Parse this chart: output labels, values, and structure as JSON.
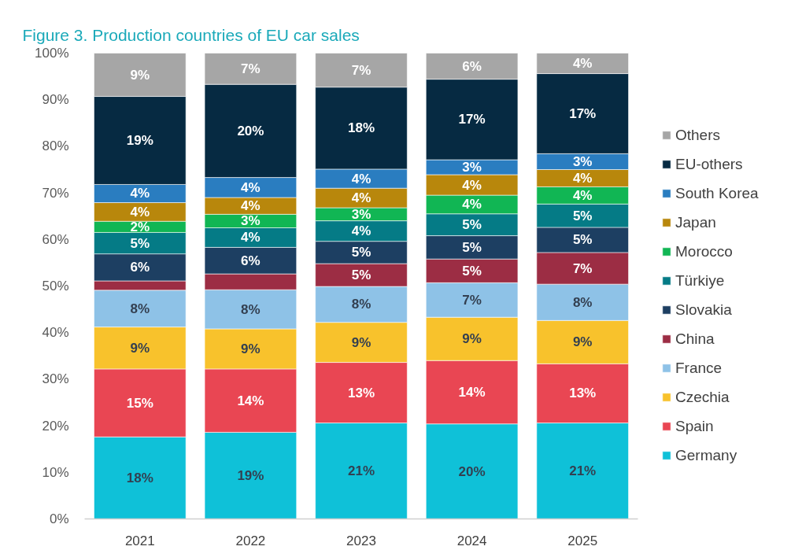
{
  "chart_data": {
    "type": "bar",
    "title": "Figure 3. Production countries of EU car sales",
    "categories": [
      "2021",
      "2022",
      "2023",
      "2024",
      "2025"
    ],
    "stacked": true,
    "ylim": [
      0,
      100
    ],
    "yticks": [
      {
        "value": 0,
        "label": "0%"
      },
      {
        "value": 10,
        "label": "10%"
      },
      {
        "value": 20,
        "label": "20%"
      },
      {
        "value": 30,
        "label": "30%"
      },
      {
        "value": 40,
        "label": "40%"
      },
      {
        "value": 50,
        "label": "50%"
      },
      {
        "value": 60,
        "label": "60%"
      },
      {
        "value": 70,
        "label": "70%"
      },
      {
        "value": 80,
        "label": "80%"
      },
      {
        "value": 90,
        "label": "90%"
      },
      {
        "value": 100,
        "label": "100%"
      }
    ],
    "legend": "right",
    "series": [
      {
        "name": "Germany",
        "color": "#0fc1d8",
        "values": [
          17.6,
          18.6,
          20.6,
          20.4,
          20.6
        ],
        "value_labels": [
          "18%",
          "19%",
          "21%",
          "20%",
          "21%"
        ]
      },
      {
        "name": "Spain",
        "color": "#e94653",
        "values": [
          14.6,
          13.6,
          13.0,
          13.6,
          12.7
        ],
        "value_labels": [
          "15%",
          "14%",
          "13%",
          "14%",
          "13%"
        ]
      },
      {
        "name": "Czechia",
        "color": "#f8c22c",
        "values": [
          9.0,
          8.6,
          8.6,
          9.3,
          9.3
        ],
        "value_labels": [
          "9%",
          "9%",
          "9%",
          "9%",
          "9%"
        ]
      },
      {
        "name": "France",
        "color": "#8ec2e7",
        "values": [
          7.9,
          8.4,
          7.7,
          7.4,
          7.8
        ],
        "value_labels": [
          "8%",
          "8%",
          "8%",
          "7%",
          "8%"
        ]
      },
      {
        "name": "China",
        "color": "#9c2d44",
        "values": [
          2.0,
          3.4,
          4.9,
          5.1,
          6.8
        ],
        "value_labels": [
          null,
          null,
          "5%",
          "5%",
          "7%"
        ]
      },
      {
        "name": "Slovakia",
        "color": "#1d3f62",
        "values": [
          5.8,
          5.7,
          4.8,
          5.0,
          5.4
        ],
        "value_labels": [
          "6%",
          "6%",
          "5%",
          "5%",
          "5%"
        ]
      },
      {
        "name": "Türkiye",
        "color": "#057b86",
        "values": [
          4.6,
          4.2,
          4.4,
          4.7,
          5.0
        ],
        "value_labels": [
          "5%",
          "4%",
          "4%",
          "5%",
          "5%"
        ]
      },
      {
        "name": "Morocco",
        "color": "#11b654",
        "values": [
          2.4,
          2.9,
          2.8,
          4.0,
          3.7
        ],
        "value_labels": [
          "2%",
          "3%",
          "3%",
          "4%",
          "4%"
        ]
      },
      {
        "name": "Japan",
        "color": "#b8870c",
        "values": [
          4.0,
          3.6,
          4.2,
          4.4,
          3.7
        ],
        "value_labels": [
          "4%",
          "4%",
          "4%",
          "4%",
          "4%"
        ]
      },
      {
        "name": "South Korea",
        "color": "#2a7dc0",
        "values": [
          3.9,
          4.3,
          4.1,
          3.2,
          3.4
        ],
        "value_labels": [
          "4%",
          "4%",
          "4%",
          "3%",
          "3%"
        ]
      },
      {
        "name": "EU-others",
        "color": "#062a42",
        "values": [
          18.9,
          20.0,
          17.6,
          17.3,
          17.2
        ],
        "value_labels": [
          "19%",
          "20%",
          "18%",
          "17%",
          "17%"
        ]
      },
      {
        "name": "Others",
        "color": "#a6a6a6",
        "values": [
          9.3,
          6.7,
          7.3,
          5.6,
          4.4
        ],
        "value_labels": [
          "9%",
          "7%",
          "7%",
          "6%",
          "4%"
        ]
      }
    ]
  }
}
